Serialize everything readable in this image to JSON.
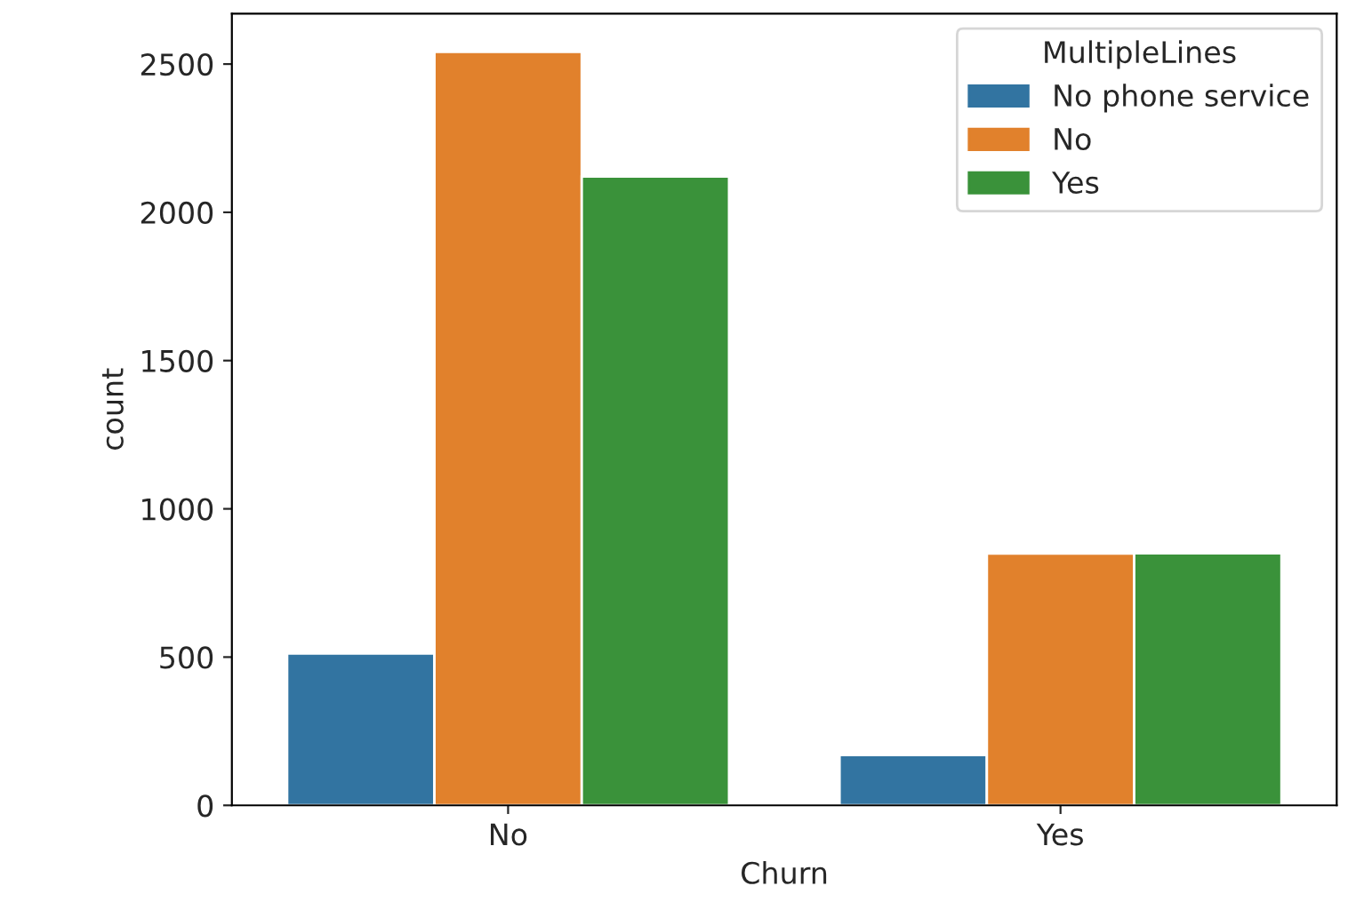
{
  "chart_data": {
    "type": "bar",
    "xlabel": "Churn",
    "ylabel": "count",
    "legend_title": "MultipleLines",
    "categories": [
      "No",
      "Yes"
    ],
    "series": [
      {
        "name": "No phone service",
        "color": "#3274a1",
        "values": [
          512,
          170
        ]
      },
      {
        "name": "No",
        "color": "#e1812c",
        "values": [
          2541,
          849
        ]
      },
      {
        "name": "Yes",
        "color": "#3a923a",
        "values": [
          2121,
          850
        ]
      }
    ],
    "ylim": [
      0,
      2670
    ],
    "yticks": [
      0,
      500,
      1000,
      1500,
      2000,
      2500
    ],
    "grid": false,
    "legend": "top right"
  }
}
